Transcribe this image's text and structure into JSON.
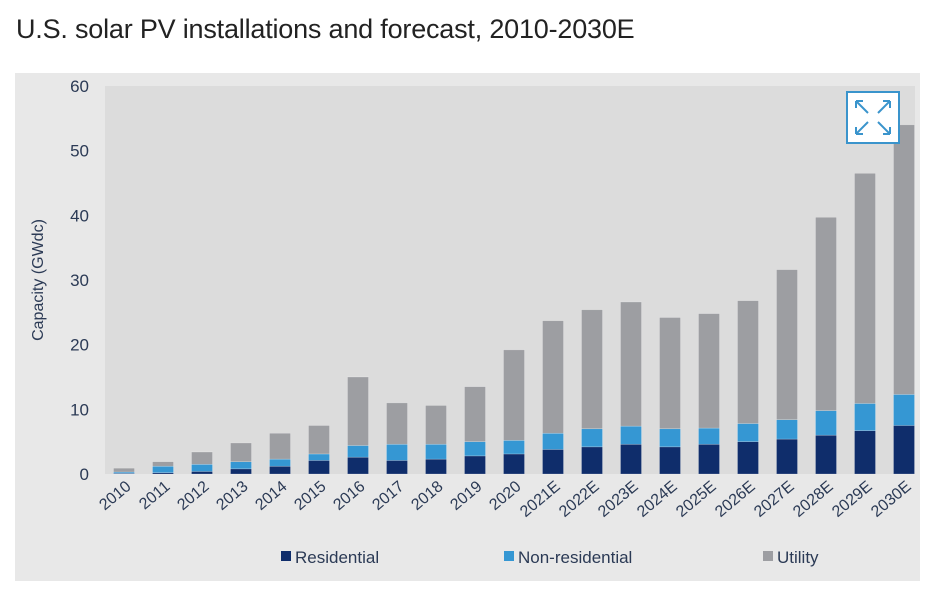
{
  "title": "U.S. solar PV installations and forecast, 2010-2030E",
  "expand_button": {
    "icon": "expand-icon"
  },
  "chart_data": {
    "type": "bar",
    "stacked": true,
    "title": "",
    "xlabel": "",
    "ylabel": "Capacity (GWdc)",
    "ylim": [
      0,
      60
    ],
    "yticks": [
      0,
      10,
      20,
      30,
      40,
      50,
      60
    ],
    "grid": false,
    "legend": "bottom",
    "categories": [
      "2010",
      "2011",
      "2012",
      "2013",
      "2014",
      "2015",
      "2016",
      "2017",
      "2018",
      "2019",
      "2020",
      "2021E",
      "2022E",
      "2023E",
      "2024E",
      "2025E",
      "2026E",
      "2027E",
      "2028E",
      "2029E",
      "2030E"
    ],
    "series": [
      {
        "name": "Residential",
        "color": "#0f2d6b",
        "values": [
          0.1,
          0.2,
          0.4,
          0.8,
          1.2,
          2.1,
          2.6,
          2.1,
          2.3,
          2.8,
          3.1,
          3.8,
          4.2,
          4.6,
          4.2,
          4.6,
          5.0,
          5.4,
          6.0,
          6.7,
          7.5
        ]
      },
      {
        "name": "Non-residential",
        "color": "#3597d3",
        "values": [
          0.2,
          1.0,
          1.1,
          1.1,
          1.1,
          1.0,
          1.8,
          2.5,
          2.3,
          2.2,
          2.1,
          2.5,
          2.8,
          2.8,
          2.8,
          2.5,
          2.8,
          3.0,
          3.8,
          4.2,
          4.8
        ]
      },
      {
        "name": "Utility",
        "color": "#9d9ea2",
        "values": [
          0.6,
          0.7,
          1.9,
          2.9,
          4.0,
          4.4,
          10.6,
          6.4,
          6.0,
          8.5,
          14.0,
          17.4,
          18.4,
          19.2,
          17.2,
          17.7,
          19.0,
          23.2,
          29.9,
          35.6,
          41.7
        ]
      }
    ]
  }
}
